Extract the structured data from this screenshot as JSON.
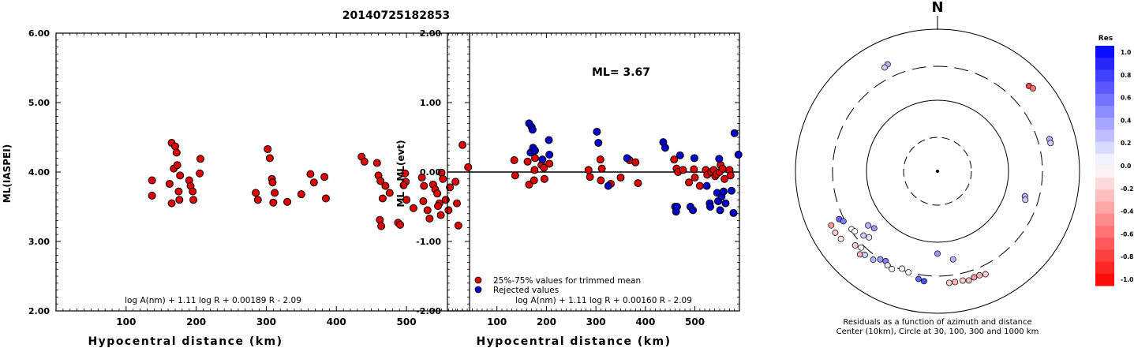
{
  "title": "20140725182853",
  "chart_data": [
    {
      "type": "scatter",
      "id": "left",
      "xlabel": "Hypocentral distance (km)",
      "ylabel": "ML(IASPEI)",
      "xlim": [
        0,
        590
      ],
      "ylim": [
        2.0,
        6.0
      ],
      "xticks": [
        "100",
        "200",
        "300",
        "400",
        "500"
      ],
      "yticks": [
        "2.00",
        "3.00",
        "4.00",
        "5.00",
        "6.00"
      ],
      "formula": "log A(nm) + 1.11 log R + 0.00189 R - 2.09",
      "point_color": "#e00000",
      "points": [
        [
          137,
          3.88
        ],
        [
          137,
          3.66
        ],
        [
          165,
          4.42
        ],
        [
          170,
          4.37
        ],
        [
          172,
          4.28
        ],
        [
          168,
          4.05
        ],
        [
          173,
          4.1
        ],
        [
          177,
          3.95
        ],
        [
          162,
          3.83
        ],
        [
          165,
          3.55
        ],
        [
          175,
          3.72
        ],
        [
          176,
          3.6
        ],
        [
          190,
          3.88
        ],
        [
          192,
          3.8
        ],
        [
          195,
          3.72
        ],
        [
          196,
          3.6
        ],
        [
          205,
          3.98
        ],
        [
          206,
          4.19
        ],
        [
          285,
          3.7
        ],
        [
          288,
          3.6
        ],
        [
          302,
          4.33
        ],
        [
          305,
          4.2
        ],
        [
          308,
          3.9
        ],
        [
          309,
          3.85
        ],
        [
          312,
          3.7
        ],
        [
          310,
          3.56
        ],
        [
          330,
          3.57
        ],
        [
          350,
          3.68
        ],
        [
          363,
          3.97
        ],
        [
          368,
          3.85
        ],
        [
          383,
          3.93
        ],
        [
          385,
          3.62
        ],
        [
          436,
          4.22
        ],
        [
          440,
          4.15
        ],
        [
          458,
          4.13
        ],
        [
          460,
          3.95
        ],
        [
          463,
          3.87
        ],
        [
          470,
          3.8
        ],
        [
          466,
          3.62
        ],
        [
          476,
          3.7
        ],
        [
          462,
          3.31
        ],
        [
          464,
          3.22
        ],
        [
          488,
          3.27
        ],
        [
          491,
          3.24
        ],
        [
          498,
          3.98
        ],
        [
          499,
          3.86
        ],
        [
          496,
          3.81
        ],
        [
          500,
          3.6
        ],
        [
          510,
          3.48
        ],
        [
          522,
          3.92
        ],
        [
          525,
          3.8
        ],
        [
          524,
          3.58
        ],
        [
          530,
          3.45
        ],
        [
          533,
          3.33
        ],
        [
          538,
          3.82
        ],
        [
          541,
          3.75
        ],
        [
          544,
          3.69
        ],
        [
          547,
          3.55
        ],
        [
          545,
          3.51
        ],
        [
          549,
          3.38
        ],
        [
          550,
          3.99
        ],
        [
          552,
          3.9
        ],
        [
          556,
          3.6
        ],
        [
          560,
          3.45
        ],
        [
          562,
          3.78
        ],
        [
          570,
          3.86
        ],
        [
          572,
          3.55
        ],
        [
          574,
          3.23
        ],
        [
          580,
          4.39
        ],
        [
          588,
          4.07
        ]
      ]
    },
    {
      "type": "scatter",
      "id": "middle",
      "xlabel": "Hypocentral distance (km)",
      "ylabel": "ML - ML(evt)",
      "xlim": [
        0,
        590
      ],
      "ylim": [
        -2.0,
        2.0
      ],
      "xticks": [
        "100",
        "200",
        "300",
        "400",
        "500"
      ],
      "yticks": [
        "-2.00",
        "-1.00",
        "0.00",
        "1.00",
        "2.00"
      ],
      "annotation": "ML= 3.67",
      "formula": "log A(nm) + 1.11 log R + 0.00160 R - 2.09",
      "legend": [
        {
          "label": "25%-75% values for trimmed mean",
          "color": "#e00000"
        },
        {
          "label": "Rejected values",
          "color": "#0000cc"
        }
      ],
      "series": [
        {
          "name": "25%-75% values for trimmed mean",
          "color": "#e00000",
          "points": [
            [
              135,
              0.17
            ],
            [
              137,
              -0.05
            ],
            [
              162,
              0.15
            ],
            [
              165,
              -0.18
            ],
            [
              175,
              -0.12
            ],
            [
              176,
              0.03
            ],
            [
              190,
              0.1
            ],
            [
              195,
              0.06
            ],
            [
              196,
              -0.1
            ],
            [
              206,
              0.12
            ],
            [
              177,
              0.2
            ],
            [
              285,
              0.03
            ],
            [
              288,
              -0.07
            ],
            [
              309,
              0.18
            ],
            [
              312,
              0.05
            ],
            [
              310,
              -0.12
            ],
            [
              330,
              -0.17
            ],
            [
              350,
              -0.08
            ],
            [
              368,
              0.17
            ],
            [
              385,
              -0.16
            ],
            [
              380,
              0.14
            ],
            [
              458,
              0.18
            ],
            [
              463,
              0.05
            ],
            [
              466,
              0.0
            ],
            [
              476,
              0.03
            ],
            [
              488,
              -0.15
            ],
            [
              498,
              0.04
            ],
            [
              500,
              -0.08
            ],
            [
              510,
              -0.2
            ],
            [
              522,
              0.03
            ],
            [
              525,
              -0.04
            ],
            [
              533,
              0.0
            ],
            [
              538,
              0.03
            ],
            [
              541,
              -0.06
            ],
            [
              544,
              -0.03
            ],
            [
              550,
              0.0
            ],
            [
              552,
              0.1
            ],
            [
              556,
              0.05
            ],
            [
              560,
              -0.1
            ],
            [
              570,
              0.03
            ],
            [
              572,
              -0.05
            ]
          ]
        },
        {
          "name": "Rejected values",
          "color": "#0000cc",
          "points": [
            [
              165,
              0.7
            ],
            [
              170,
              0.65
            ],
            [
              172,
              0.61
            ],
            [
              168,
              0.28
            ],
            [
              173,
              0.35
            ],
            [
              177,
              0.31
            ],
            [
              205,
              0.46
            ],
            [
              206,
              0.25
            ],
            [
              192,
              0.18
            ],
            [
              302,
              0.58
            ],
            [
              305,
              0.42
            ],
            [
              325,
              -0.2
            ],
            [
              363,
              0.2
            ],
            [
              436,
              0.43
            ],
            [
              440,
              0.35
            ],
            [
              460,
              -0.5
            ],
            [
              462,
              -0.57
            ],
            [
              464,
              -0.5
            ],
            [
              470,
              0.24
            ],
            [
              491,
              -0.5
            ],
            [
              496,
              -0.55
            ],
            [
              499,
              0.2
            ],
            [
              524,
              -0.2
            ],
            [
              530,
              -0.45
            ],
            [
              531,
              -0.5
            ],
            [
              545,
              -0.3
            ],
            [
              547,
              -0.42
            ],
            [
              549,
              0.19
            ],
            [
              551,
              -0.55
            ],
            [
              554,
              -0.35
            ],
            [
              558,
              -0.28
            ],
            [
              562,
              -0.45
            ],
            [
              574,
              -0.27
            ],
            [
              578,
              -0.59
            ],
            [
              580,
              0.56
            ],
            [
              588,
              0.25
            ]
          ]
        }
      ]
    },
    {
      "type": "scatter",
      "id": "polar",
      "description_text": [
        "Residuals as a function of azimuth and distance",
        "Center (10km), Circle at 30, 100, 300 and 1000 km"
      ],
      "north_label": "N",
      "colorbar": {
        "title": "Res",
        "ticks": [
          "1.0",
          "0.8",
          "0.6",
          "0.4",
          "0.2",
          "0.0",
          "-0.2",
          "-0.4",
          "-0.6",
          "-0.8",
          "-1.0"
        ]
      },
      "points": [
        {
          "az": 335,
          "r": 0.83,
          "res": 0.3
        },
        {
          "az": 333,
          "r": 0.82,
          "res": 0.2
        },
        {
          "az": 47,
          "r": 0.88,
          "res": -0.75
        },
        {
          "az": 49,
          "r": 0.89,
          "res": -0.55
        },
        {
          "az": 74,
          "r": 0.82,
          "res": 0.3
        },
        {
          "az": 76,
          "r": 0.82,
          "res": 0.2
        },
        {
          "az": 106,
          "r": 0.64,
          "res": 0.3
        },
        {
          "az": 108,
          "r": 0.65,
          "res": 0.2
        },
        {
          "az": 244,
          "r": 0.77,
          "res": 0.6
        },
        {
          "az": 242,
          "r": 0.75,
          "res": 0.5
        },
        {
          "az": 236,
          "r": 0.73,
          "res": 0.0
        },
        {
          "az": 234,
          "r": 0.72,
          "res": 0.0
        },
        {
          "az": 229,
          "r": 0.69,
          "res": 0.2
        },
        {
          "az": 228,
          "r": 0.6,
          "res": 0.4
        },
        {
          "az": 226,
          "r": 0.67,
          "res": 0.1
        },
        {
          "az": 232,
          "r": 0.62,
          "res": 0.3
        },
        {
          "az": 243,
          "r": 0.84,
          "res": -0.4
        },
        {
          "az": 239,
          "r": 0.84,
          "res": -0.2
        },
        {
          "az": 235,
          "r": 0.83,
          "res": -0.1
        },
        {
          "az": 228,
          "r": 0.78,
          "res": -0.2
        },
        {
          "az": 225,
          "r": 0.76,
          "res": 0.0
        },
        {
          "az": 223,
          "r": 0.8,
          "res": -0.3
        },
        {
          "az": 221,
          "r": 0.78,
          "res": 0.2
        },
        {
          "az": 216,
          "r": 0.77,
          "res": 0.3
        },
        {
          "az": 213,
          "r": 0.74,
          "res": 0.4
        },
        {
          "az": 210,
          "r": 0.73,
          "res": 0.5
        },
        {
          "az": 208,
          "r": 0.75,
          "res": 0.1
        },
        {
          "az": 200,
          "r": 0.73,
          "res": 0.0
        },
        {
          "az": 196,
          "r": 0.74,
          "res": 0.0
        },
        {
          "az": 190,
          "r": 0.77,
          "res": 0.6
        },
        {
          "az": 187,
          "r": 0.78,
          "res": 0.7
        },
        {
          "az": 180,
          "r": 0.58,
          "res": 0.4
        },
        {
          "az": 170,
          "r": 0.63,
          "res": 0.3
        },
        {
          "az": 174,
          "r": 0.79,
          "res": -0.2
        },
        {
          "az": 171,
          "r": 0.79,
          "res": -0.3
        },
        {
          "az": 167,
          "r": 0.79,
          "res": -0.2
        },
        {
          "az": 164,
          "r": 0.8,
          "res": -0.25
        },
        {
          "az": 161,
          "r": 0.79,
          "res": -0.4
        },
        {
          "az": 158,
          "r": 0.79,
          "res": -0.3
        },
        {
          "az": 155,
          "r": 0.8,
          "res": -0.2
        },
        {
          "az": 205,
          "r": 0.76,
          "res": 0.0
        }
      ]
    }
  ]
}
